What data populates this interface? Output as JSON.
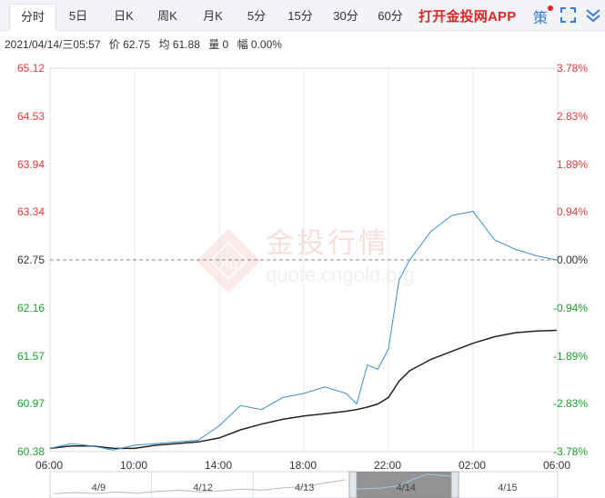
{
  "tabs": [
    {
      "label": "分时",
      "active": true
    },
    {
      "label": "5日",
      "active": false
    },
    {
      "label": "日K",
      "active": false
    },
    {
      "label": "周K",
      "active": false
    },
    {
      "label": "月K",
      "active": false
    },
    {
      "label": "5分",
      "active": false
    },
    {
      "label": "15分",
      "active": false
    },
    {
      "label": "30分",
      "active": false
    },
    {
      "label": "60分",
      "active": false
    }
  ],
  "app_link": "打开金投网APP",
  "strategy_label": "策",
  "info": {
    "datetime": "2021/04/14/三05:57",
    "price": "价 62.75",
    "avg": "均 61.88",
    "volume": "量 0",
    "change": "幅 0.00%"
  },
  "watermark": {
    "brand": "金投行情",
    "url": "quote.cngold.org",
    "logo_text": "Au"
  },
  "colors": {
    "up": "#e33a3a",
    "down": "#1aa02e",
    "price_line": "#3a8fc7",
    "avg_line": "#222222"
  },
  "chart_data": {
    "type": "line",
    "y_left_ticks": [
      "65.12",
      "64.53",
      "63.94",
      "63.34",
      "62.75",
      "62.16",
      "61.57",
      "60.97",
      "60.38"
    ],
    "y_right_ticks": [
      "3.78%",
      "2.83%",
      "1.89%",
      "0.94%",
      "0.00%",
      "-0.94%",
      "-1.89%",
      "-2.83%",
      "-3.78%"
    ],
    "x_ticks": [
      "06:00",
      "10:00",
      "14:00",
      "18:00",
      "22:00",
      "02:00",
      "06:00"
    ],
    "ylim": [
      60.38,
      65.12
    ],
    "reference_price": 62.75,
    "x": [
      "06:00",
      "07:00",
      "08:00",
      "09:00",
      "10:00",
      "11:00",
      "12:00",
      "13:00",
      "14:00",
      "15:00",
      "16:00",
      "17:00",
      "18:00",
      "19:00",
      "20:00",
      "20:30",
      "21:00",
      "21:30",
      "22:00",
      "22:30",
      "23:00",
      "00:00",
      "01:00",
      "02:00",
      "03:00",
      "04:00",
      "05:00",
      "05:57"
    ],
    "series": [
      {
        "values": [
          60.42,
          60.48,
          60.45,
          60.4,
          60.46,
          60.48,
          60.5,
          60.52,
          60.7,
          60.95,
          60.9,
          61.05,
          61.1,
          61.18,
          61.1,
          60.97,
          61.45,
          61.4,
          61.65,
          62.5,
          62.75,
          63.1,
          63.3,
          63.35,
          63.0,
          62.88,
          62.8,
          62.75
        ]
      },
      {
        "values": [
          60.42,
          60.45,
          60.45,
          60.42,
          60.42,
          60.46,
          60.48,
          60.5,
          60.55,
          60.65,
          60.72,
          60.78,
          60.82,
          60.85,
          60.88,
          60.9,
          60.93,
          60.97,
          61.05,
          61.25,
          61.38,
          61.52,
          61.62,
          61.72,
          61.8,
          61.85,
          61.87,
          61.88
        ]
      }
    ],
    "navigator_dates": [
      "4/9",
      "4/12",
      "4/13",
      "4/14",
      "4/15"
    ]
  }
}
